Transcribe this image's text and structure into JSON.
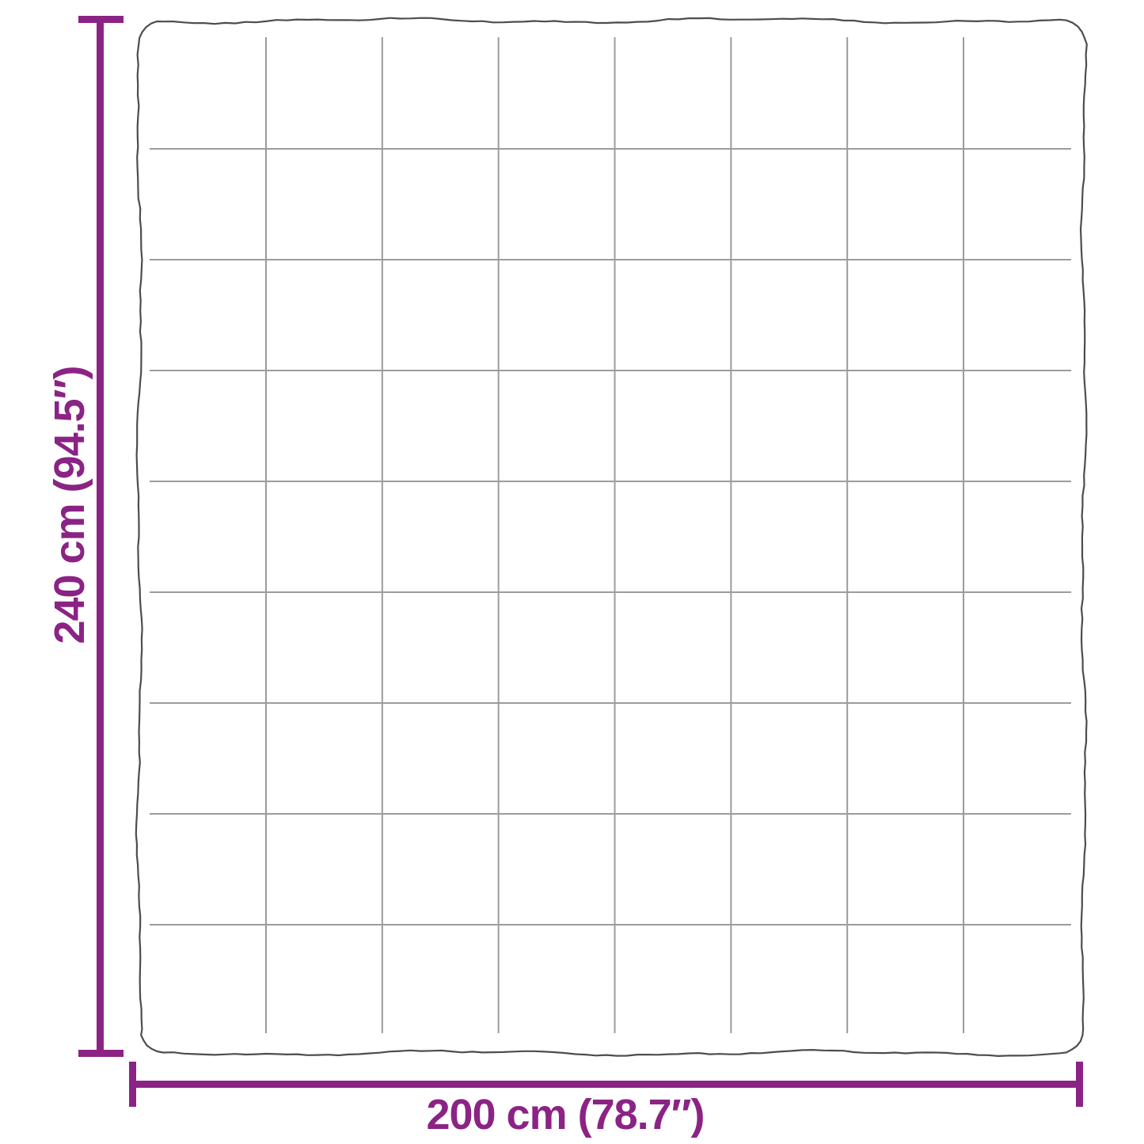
{
  "diagram": {
    "height_label": "240 cm (94.5″)",
    "width_label": "200 cm (78.7″)",
    "blanket_grid": {
      "columns": 8,
      "rows": 9
    }
  },
  "colors": {
    "dimension_accent": "#8b2385",
    "blanket_outline": "#4d4d4d",
    "stitch_grid_line": "#9c9c9c",
    "background": "#ffffff"
  }
}
